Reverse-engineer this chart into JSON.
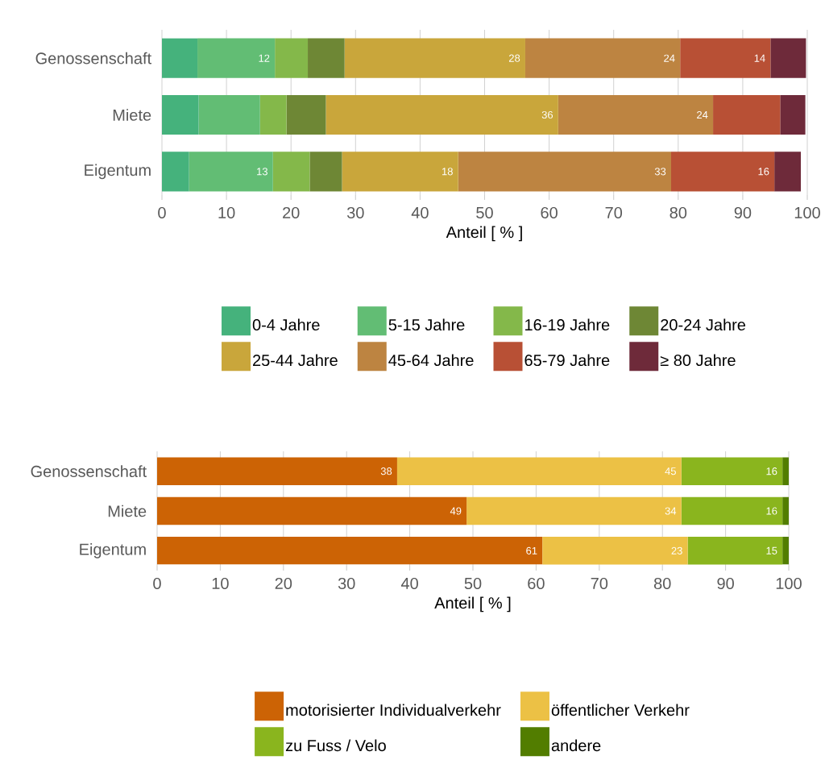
{
  "chart_data": [
    {
      "type": "bar",
      "orientation": "horizontal",
      "stacked": true,
      "categories": [
        "Genossenschaft",
        "Miete",
        "Eigentum"
      ],
      "xlabel": "Anteil [ % ]",
      "xlim": [
        0,
        100
      ],
      "xticks": [
        0,
        10,
        20,
        30,
        40,
        50,
        60,
        70,
        80,
        90,
        100
      ],
      "grid": "x",
      "legend": "bottom",
      "series": [
        {
          "name": "0-4 Jahre",
          "color": "#45b27c",
          "values": [
            5.5,
            5.7,
            4.2
          ],
          "value_labels": [
            null,
            null,
            null
          ]
        },
        {
          "name": "5-15 Jahre",
          "color": "#62bd74",
          "values": [
            12,
            9.5,
            13
          ],
          "value_labels": [
            "12",
            null,
            "13"
          ]
        },
        {
          "name": "16-19 Jahre",
          "color": "#84b84a",
          "values": [
            5.1,
            4.1,
            5.7
          ],
          "value_labels": [
            null,
            null,
            null
          ]
        },
        {
          "name": "20-24 Jahre",
          "color": "#6e8735",
          "values": [
            5.7,
            6.1,
            5
          ],
          "value_labels": [
            null,
            null,
            null
          ]
        },
        {
          "name": "25-44 Jahre",
          "color": "#c9a63b",
          "values": [
            28,
            36,
            18
          ],
          "value_labels": [
            "28",
            "36",
            "18"
          ]
        },
        {
          "name": "45-64 Jahre",
          "color": "#bd8441",
          "values": [
            24,
            24,
            33
          ],
          "value_labels": [
            "24",
            "24",
            "33"
          ]
        },
        {
          "name": "65-79 Jahre",
          "color": "#b85035",
          "values": [
            14,
            10.4,
            16
          ],
          "value_labels": [
            "14",
            null,
            "16"
          ]
        },
        {
          "name": "≥ 80 Jahre",
          "color": "#6e2a3a",
          "values": [
            5.5,
            3.9,
            4.1
          ],
          "value_labels": [
            null,
            null,
            null
          ]
        }
      ]
    },
    {
      "type": "bar",
      "orientation": "horizontal",
      "stacked": true,
      "categories": [
        "Genossenschaft",
        "Miete",
        "Eigentum"
      ],
      "xlabel": "Anteil [ % ]",
      "xlim": [
        0,
        100
      ],
      "xticks": [
        0,
        10,
        20,
        30,
        40,
        50,
        60,
        70,
        80,
        90,
        100
      ],
      "grid": "x",
      "legend": "bottom",
      "series": [
        {
          "name": "motorisierter Individualverkehr",
          "color": "#cc6305",
          "values": [
            38,
            49,
            61
          ],
          "value_labels": [
            "38",
            "49",
            "61"
          ]
        },
        {
          "name": "öffentlicher Verkehr",
          "color": "#ecc145",
          "values": [
            45,
            34,
            23
          ],
          "value_labels": [
            "45",
            "34",
            "23"
          ]
        },
        {
          "name": "zu Fuss / Velo",
          "color": "#8ab51e",
          "values": [
            16,
            16,
            15
          ],
          "value_labels": [
            "16",
            "16",
            "15"
          ]
        },
        {
          "name": "andere",
          "color": "#527d00",
          "values": [
            1,
            1,
            1
          ],
          "value_labels": [
            null,
            null,
            null
          ]
        }
      ]
    }
  ]
}
